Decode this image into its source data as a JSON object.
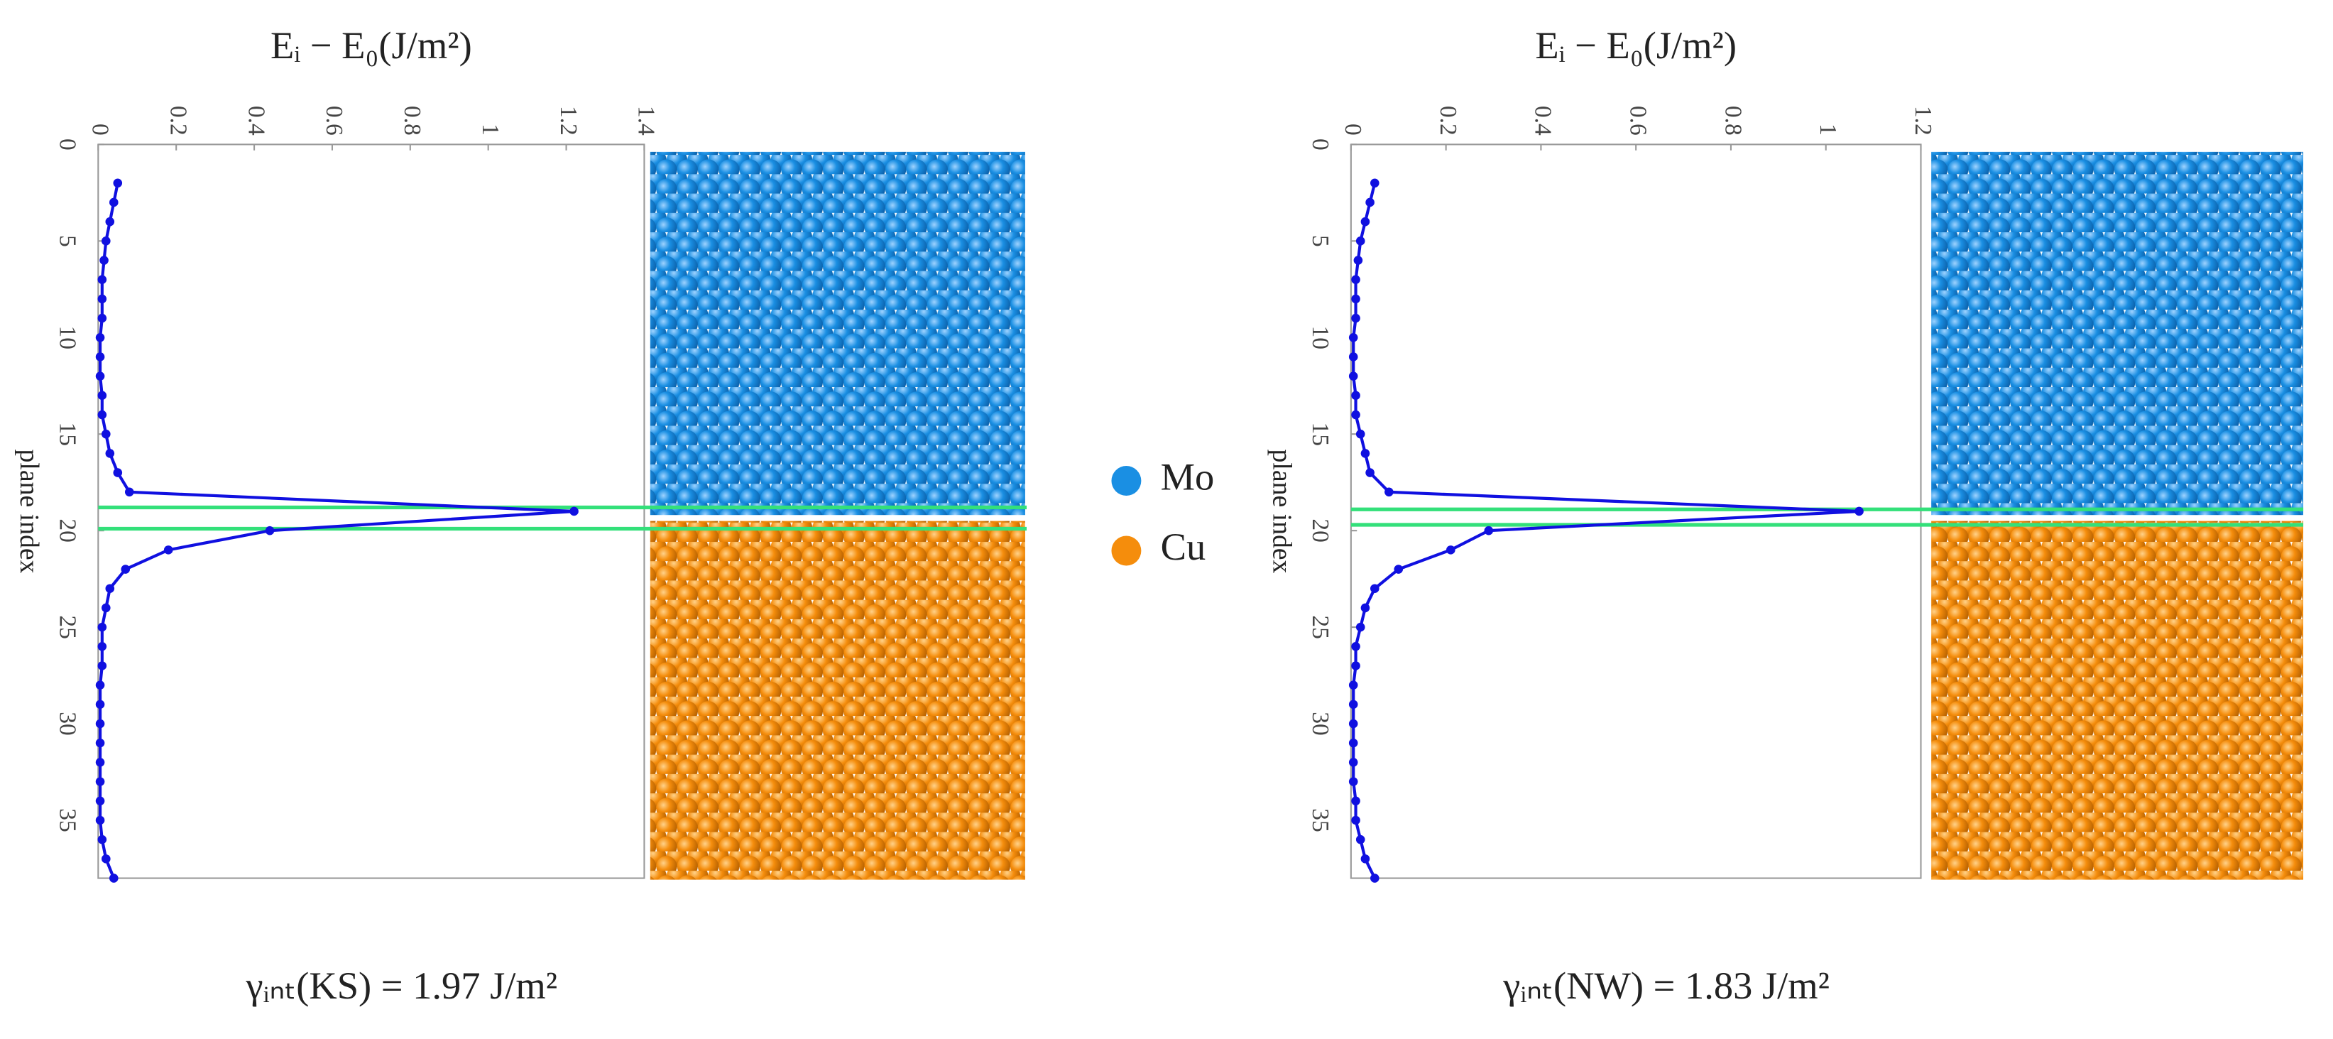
{
  "chart_data": [
    {
      "type": "line",
      "title": "Eᵢ − E₀(J/m²)",
      "x_label": "plane index",
      "x": [
        2,
        3,
        4,
        5,
        6,
        7,
        8,
        9,
        10,
        11,
        12,
        13,
        14,
        15,
        16,
        17,
        18,
        19,
        20,
        21,
        22,
        23,
        24,
        25,
        26,
        27,
        28,
        29,
        30,
        31,
        32,
        33,
        34,
        35,
        36,
        37,
        38
      ],
      "values": [
        0.05,
        0.04,
        0.03,
        0.02,
        0.015,
        0.01,
        0.01,
        0.01,
        0.005,
        0.005,
        0.005,
        0.01,
        0.01,
        0.02,
        0.03,
        0.05,
        0.08,
        1.22,
        0.44,
        0.18,
        0.07,
        0.03,
        0.02,
        0.01,
        0.01,
        0.01,
        0.005,
        0.005,
        0.005,
        0.005,
        0.005,
        0.005,
        0.005,
        0.005,
        0.01,
        0.02,
        0.04
      ],
      "color": "#1010e0",
      "xlim": [
        0,
        38
      ],
      "xticks": [
        0,
        5,
        10,
        15,
        20,
        25,
        30,
        35
      ],
      "ylim": [
        0,
        1.4
      ],
      "yticks": [
        0,
        0.2,
        0.4,
        0.6,
        0.8,
        1,
        1.2,
        1.4
      ],
      "interface_lines": [
        18.8,
        19.9
      ],
      "interface_color": "#33e07a",
      "annotation": "γᵢₙₜ(KS) = 1.97 J/m²"
    },
    {
      "type": "line",
      "title": "Eᵢ − E₀(J/m²)",
      "x_label": "plane index",
      "x": [
        2,
        3,
        4,
        5,
        6,
        7,
        8,
        9,
        10,
        11,
        12,
        13,
        14,
        15,
        16,
        17,
        18,
        19,
        20,
        21,
        22,
        23,
        24,
        25,
        26,
        27,
        28,
        29,
        30,
        31,
        32,
        33,
        34,
        35,
        36,
        37,
        38
      ],
      "values": [
        0.05,
        0.04,
        0.03,
        0.02,
        0.015,
        0.01,
        0.01,
        0.01,
        0.005,
        0.005,
        0.005,
        0.01,
        0.01,
        0.02,
        0.03,
        0.04,
        0.08,
        1.07,
        0.29,
        0.21,
        0.1,
        0.05,
        0.03,
        0.02,
        0.01,
        0.01,
        0.005,
        0.005,
        0.005,
        0.005,
        0.005,
        0.005,
        0.01,
        0.01,
        0.02,
        0.03,
        0.05
      ],
      "color": "#1010e0",
      "xlim": [
        0,
        38
      ],
      "xticks": [
        0,
        5,
        10,
        15,
        20,
        25,
        30,
        35
      ],
      "ylim": [
        0,
        1.2
      ],
      "yticks": [
        0,
        0.2,
        0.4,
        0.6,
        0.8,
        1,
        1.2
      ],
      "interface_lines": [
        18.9,
        19.7
      ],
      "interface_color": "#33e07a",
      "annotation": "γᵢₙₜ(NW) = 1.83 J/m²"
    }
  ],
  "legend": [
    {
      "name": "Mo",
      "color": "#1a8fe3"
    },
    {
      "name": "Cu",
      "color": "#f58d0c"
    }
  ]
}
